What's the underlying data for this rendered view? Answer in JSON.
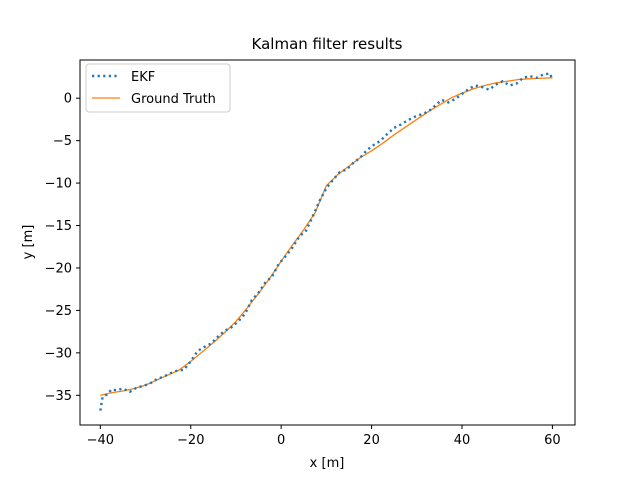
{
  "chart_data": {
    "type": "line",
    "title": "Kalman filter results",
    "xlabel": "x [m]",
    "ylabel": "y [m]",
    "xlim": [
      -44.5,
      65
    ],
    "ylim": [
      -38.5,
      4.5
    ],
    "xticks": [
      -40,
      -20,
      0,
      20,
      40,
      60
    ],
    "yticks": [
      -35,
      -30,
      -25,
      -20,
      -15,
      -10,
      -5,
      0
    ],
    "xtick_labels": [
      "−40",
      "−20",
      "0",
      "20",
      "40",
      "60"
    ],
    "ytick_labels": [
      "−35",
      "−30",
      "−25",
      "−20",
      "−15",
      "−10",
      "−5",
      "0"
    ],
    "grid": false,
    "legend_position": "top-left",
    "series": [
      {
        "name": "EKF",
        "style": "dotted",
        "color": "#1f77b4",
        "x": [
          -40,
          -39.5,
          -38.5,
          -37.5,
          -36.5,
          -35,
          -33.5,
          -32,
          -30.5,
          -29,
          -27.5,
          -26,
          -24.5,
          -23,
          -21.5,
          -20,
          -18.5,
          -17,
          -15.5,
          -14,
          -12.5,
          -11,
          -9.5,
          -8,
          -6.5,
          -5,
          -3.5,
          -2,
          -0.5,
          1,
          2.5,
          4,
          5.5,
          7,
          8.5,
          10,
          11.5,
          13,
          14.5,
          16,
          17.5,
          19,
          20.5,
          22,
          23.5,
          25,
          26.5,
          28,
          29.5,
          31,
          32.5,
          34,
          35.5,
          37,
          38.5,
          40,
          41.5,
          43,
          44.5,
          46,
          47.5,
          49,
          50.5,
          52,
          53.5,
          55,
          56.5,
          58,
          59.5,
          60
        ],
        "y": [
          -36.8,
          -35.2,
          -34.9,
          -34.3,
          -34.4,
          -34.2,
          -34.6,
          -34.1,
          -33.9,
          -33.6,
          -33.1,
          -32.8,
          -32.4,
          -32.1,
          -32.0,
          -31.0,
          -29.8,
          -29.3,
          -28.9,
          -28.1,
          -27.4,
          -27.0,
          -26.3,
          -25.4,
          -23.8,
          -22.9,
          -21.7,
          -21.0,
          -19.5,
          -18.6,
          -17.6,
          -16.3,
          -15.6,
          -13.9,
          -12.1,
          -10.6,
          -9.6,
          -8.7,
          -8.4,
          -7.6,
          -7.0,
          -6.1,
          -5.5,
          -5.0,
          -4.2,
          -3.5,
          -3.1,
          -2.6,
          -2.2,
          -1.9,
          -1.6,
          -0.9,
          -0.2,
          -0.5,
          -0.1,
          0.5,
          1.1,
          1.5,
          1.3,
          1.0,
          1.6,
          2.0,
          1.5,
          1.7,
          2.4,
          2.6,
          2.4,
          2.8,
          2.9,
          2.1
        ]
      },
      {
        "name": "Ground Truth",
        "style": "solid",
        "color": "#ff7f0e",
        "x": [
          -40,
          -37.5,
          -35,
          -32.5,
          -30,
          -27.5,
          -25,
          -22.5,
          -20,
          -17.5,
          -15,
          -12.5,
          -10,
          -7.5,
          -5,
          -2.5,
          0,
          2.5,
          5,
          7.5,
          10,
          12.5,
          15,
          17.5,
          20,
          22.5,
          25,
          27.5,
          30,
          32.5,
          35,
          37.5,
          40,
          42.5,
          45,
          47.5,
          50,
          52.5,
          55,
          57.5,
          60
        ],
        "y": [
          -35.0,
          -34.7,
          -34.5,
          -34.2,
          -33.8,
          -33.2,
          -32.6,
          -32.0,
          -31.0,
          -29.9,
          -28.8,
          -27.6,
          -26.3,
          -24.7,
          -23.0,
          -21.2,
          -19.2,
          -17.3,
          -15.5,
          -13.5,
          -10.3,
          -9.0,
          -8.0,
          -7.0,
          -6.2,
          -5.3,
          -4.3,
          -3.4,
          -2.5,
          -1.6,
          -0.8,
          0.0,
          0.6,
          1.1,
          1.5,
          1.8,
          2.0,
          2.2,
          2.3,
          2.35,
          2.4
        ]
      }
    ]
  }
}
